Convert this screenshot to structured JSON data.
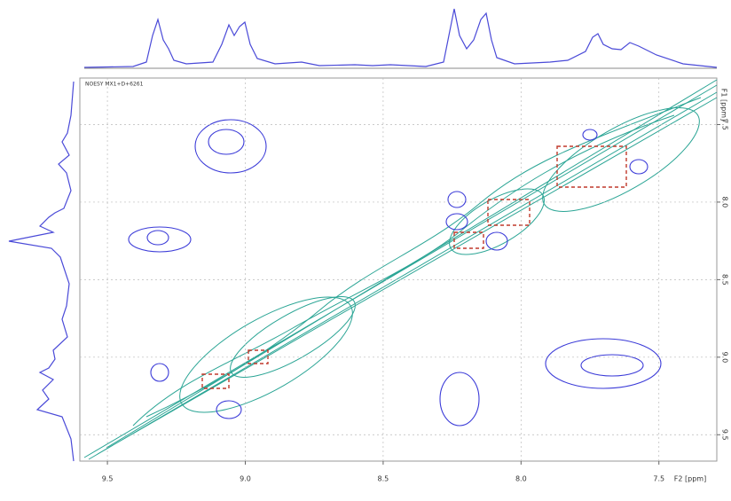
{
  "chart_data": {
    "type": "nmr2d",
    "title": "NOESY MX1+D+6261",
    "x_label": "F2 [ppm]",
    "y_label": "F1 [ppm]",
    "xlim": [
      9.6,
      7.29
    ],
    "ylim": [
      7.2,
      9.67
    ],
    "xticks": [
      9.5,
      {
        "value": 9,
        "label": "9.0"
      },
      8.5,
      {
        "value": 8,
        "label": "8.0"
      },
      7.5
    ],
    "yticks": [
      7.5,
      {
        "value": 8,
        "label": "8.0"
      },
      8.5,
      {
        "value": 9,
        "label": "9.0"
      },
      9.5
    ],
    "grid": true
  }
}
